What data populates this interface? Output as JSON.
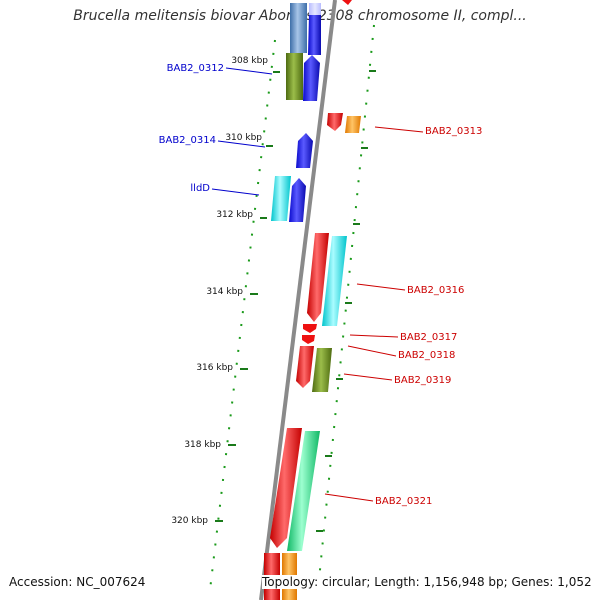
{
  "title": "Brucella melitensis biovar Abortus 2308 chromosome II, compl...",
  "footer": {
    "accession": "Accession: NC_007624",
    "summary": "Topology: circular; Length: 1,156,948 bp; Genes: 1,052"
  },
  "ticks": [
    {
      "label": "308 kbp"
    },
    {
      "label": "310 kbp"
    },
    {
      "label": "312 kbp"
    },
    {
      "label": "314 kbp"
    },
    {
      "label": "316 kbp"
    },
    {
      "label": "318 kbp"
    },
    {
      "label": "320 kbp"
    }
  ],
  "left_labels": [
    {
      "text": "BAB2_0312",
      "color": "#0000cc"
    },
    {
      "text": "BAB2_0314",
      "color": "#0000cc"
    },
    {
      "text": "lldD",
      "color": "#0000cc"
    }
  ],
  "right_labels": [
    {
      "text": "BAB2_0313",
      "color": "#cc0000"
    },
    {
      "text": "BAB2_0316",
      "color": "#cc0000"
    },
    {
      "text": "BAB2_0317",
      "color": "#cc0000"
    },
    {
      "text": "BAB2_0318",
      "color": "#cc0000"
    },
    {
      "text": "BAB2_0319",
      "color": "#cc0000"
    },
    {
      "text": "BAB2_0321",
      "color": "#cc0000"
    }
  ],
  "colors": {
    "backbone": "#8a8a8a",
    "tick": "#1a7a1a",
    "blue_gene": "#1010ee",
    "steel_gene": "#5f8fc6",
    "olive_gene": "#6b8e23",
    "cyan_gene": "#1de5ee",
    "red_gene": "#ee1111",
    "orange_gene": "#ff9900",
    "green_gene": "#22e08a"
  }
}
